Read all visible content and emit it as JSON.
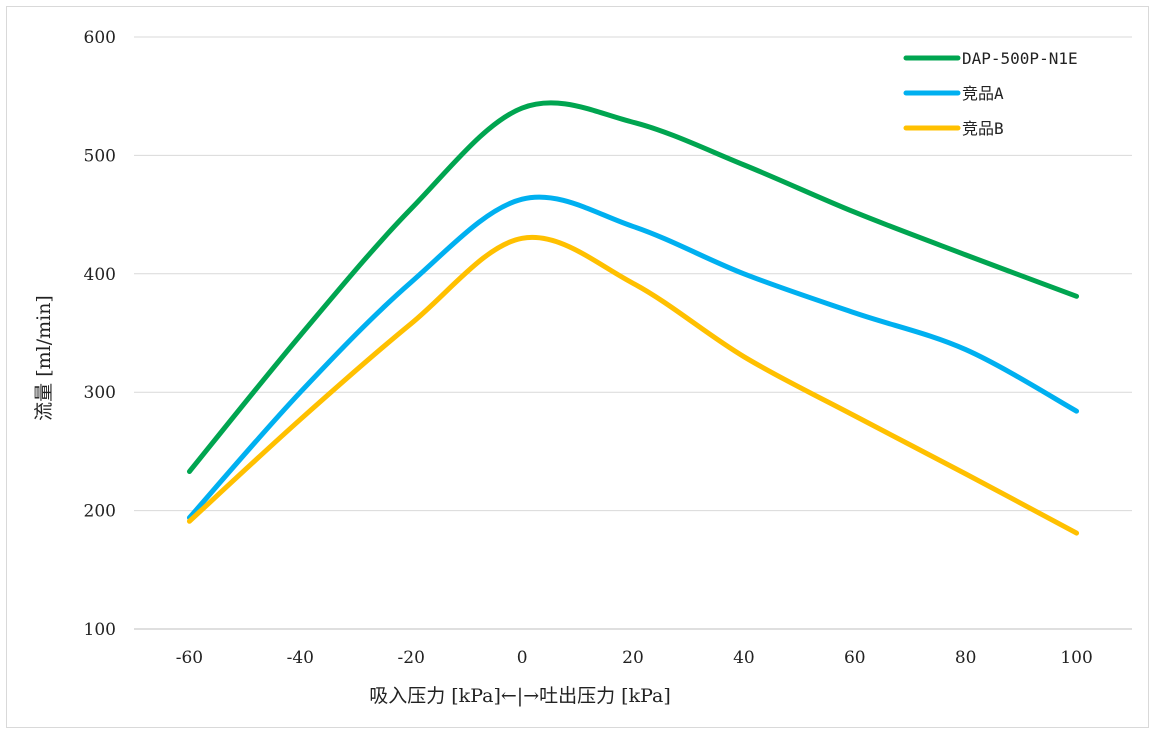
{
  "chart_data": {
    "type": "line",
    "xlabel": "吸入压力 [kPa]←|→吐出压力 [kPa]",
    "ylabel": "流量 [ml/min]",
    "x": [
      -60,
      -40,
      -20,
      0,
      20,
      40,
      60,
      80,
      100
    ],
    "xticks": [
      "-60",
      "-40",
      "-20",
      "0",
      "20",
      "40",
      "60",
      "80",
      "100"
    ],
    "yticks": [
      "100",
      "200",
      "300",
      "400",
      "500",
      "600"
    ],
    "ylim": [
      100,
      600
    ],
    "xlim": [
      -70,
      110
    ],
    "grid": "horizontal",
    "legend_position": "top-right",
    "series": [
      {
        "name": "DAP-500P-N1E",
        "color": "#00a550",
        "values": [
          233,
          348,
          455,
          540,
          528,
          492,
          452,
          416,
          381
        ]
      },
      {
        "name": "竞品A",
        "color": "#00b0f0",
        "values": [
          194,
          300,
          393,
          463,
          440,
          400,
          367,
          336,
          284
        ]
      },
      {
        "name": "竞品B",
        "color": "#ffc000",
        "values": [
          191,
          277,
          358,
          430,
          392,
          330,
          280,
          231,
          181
        ]
      }
    ]
  }
}
